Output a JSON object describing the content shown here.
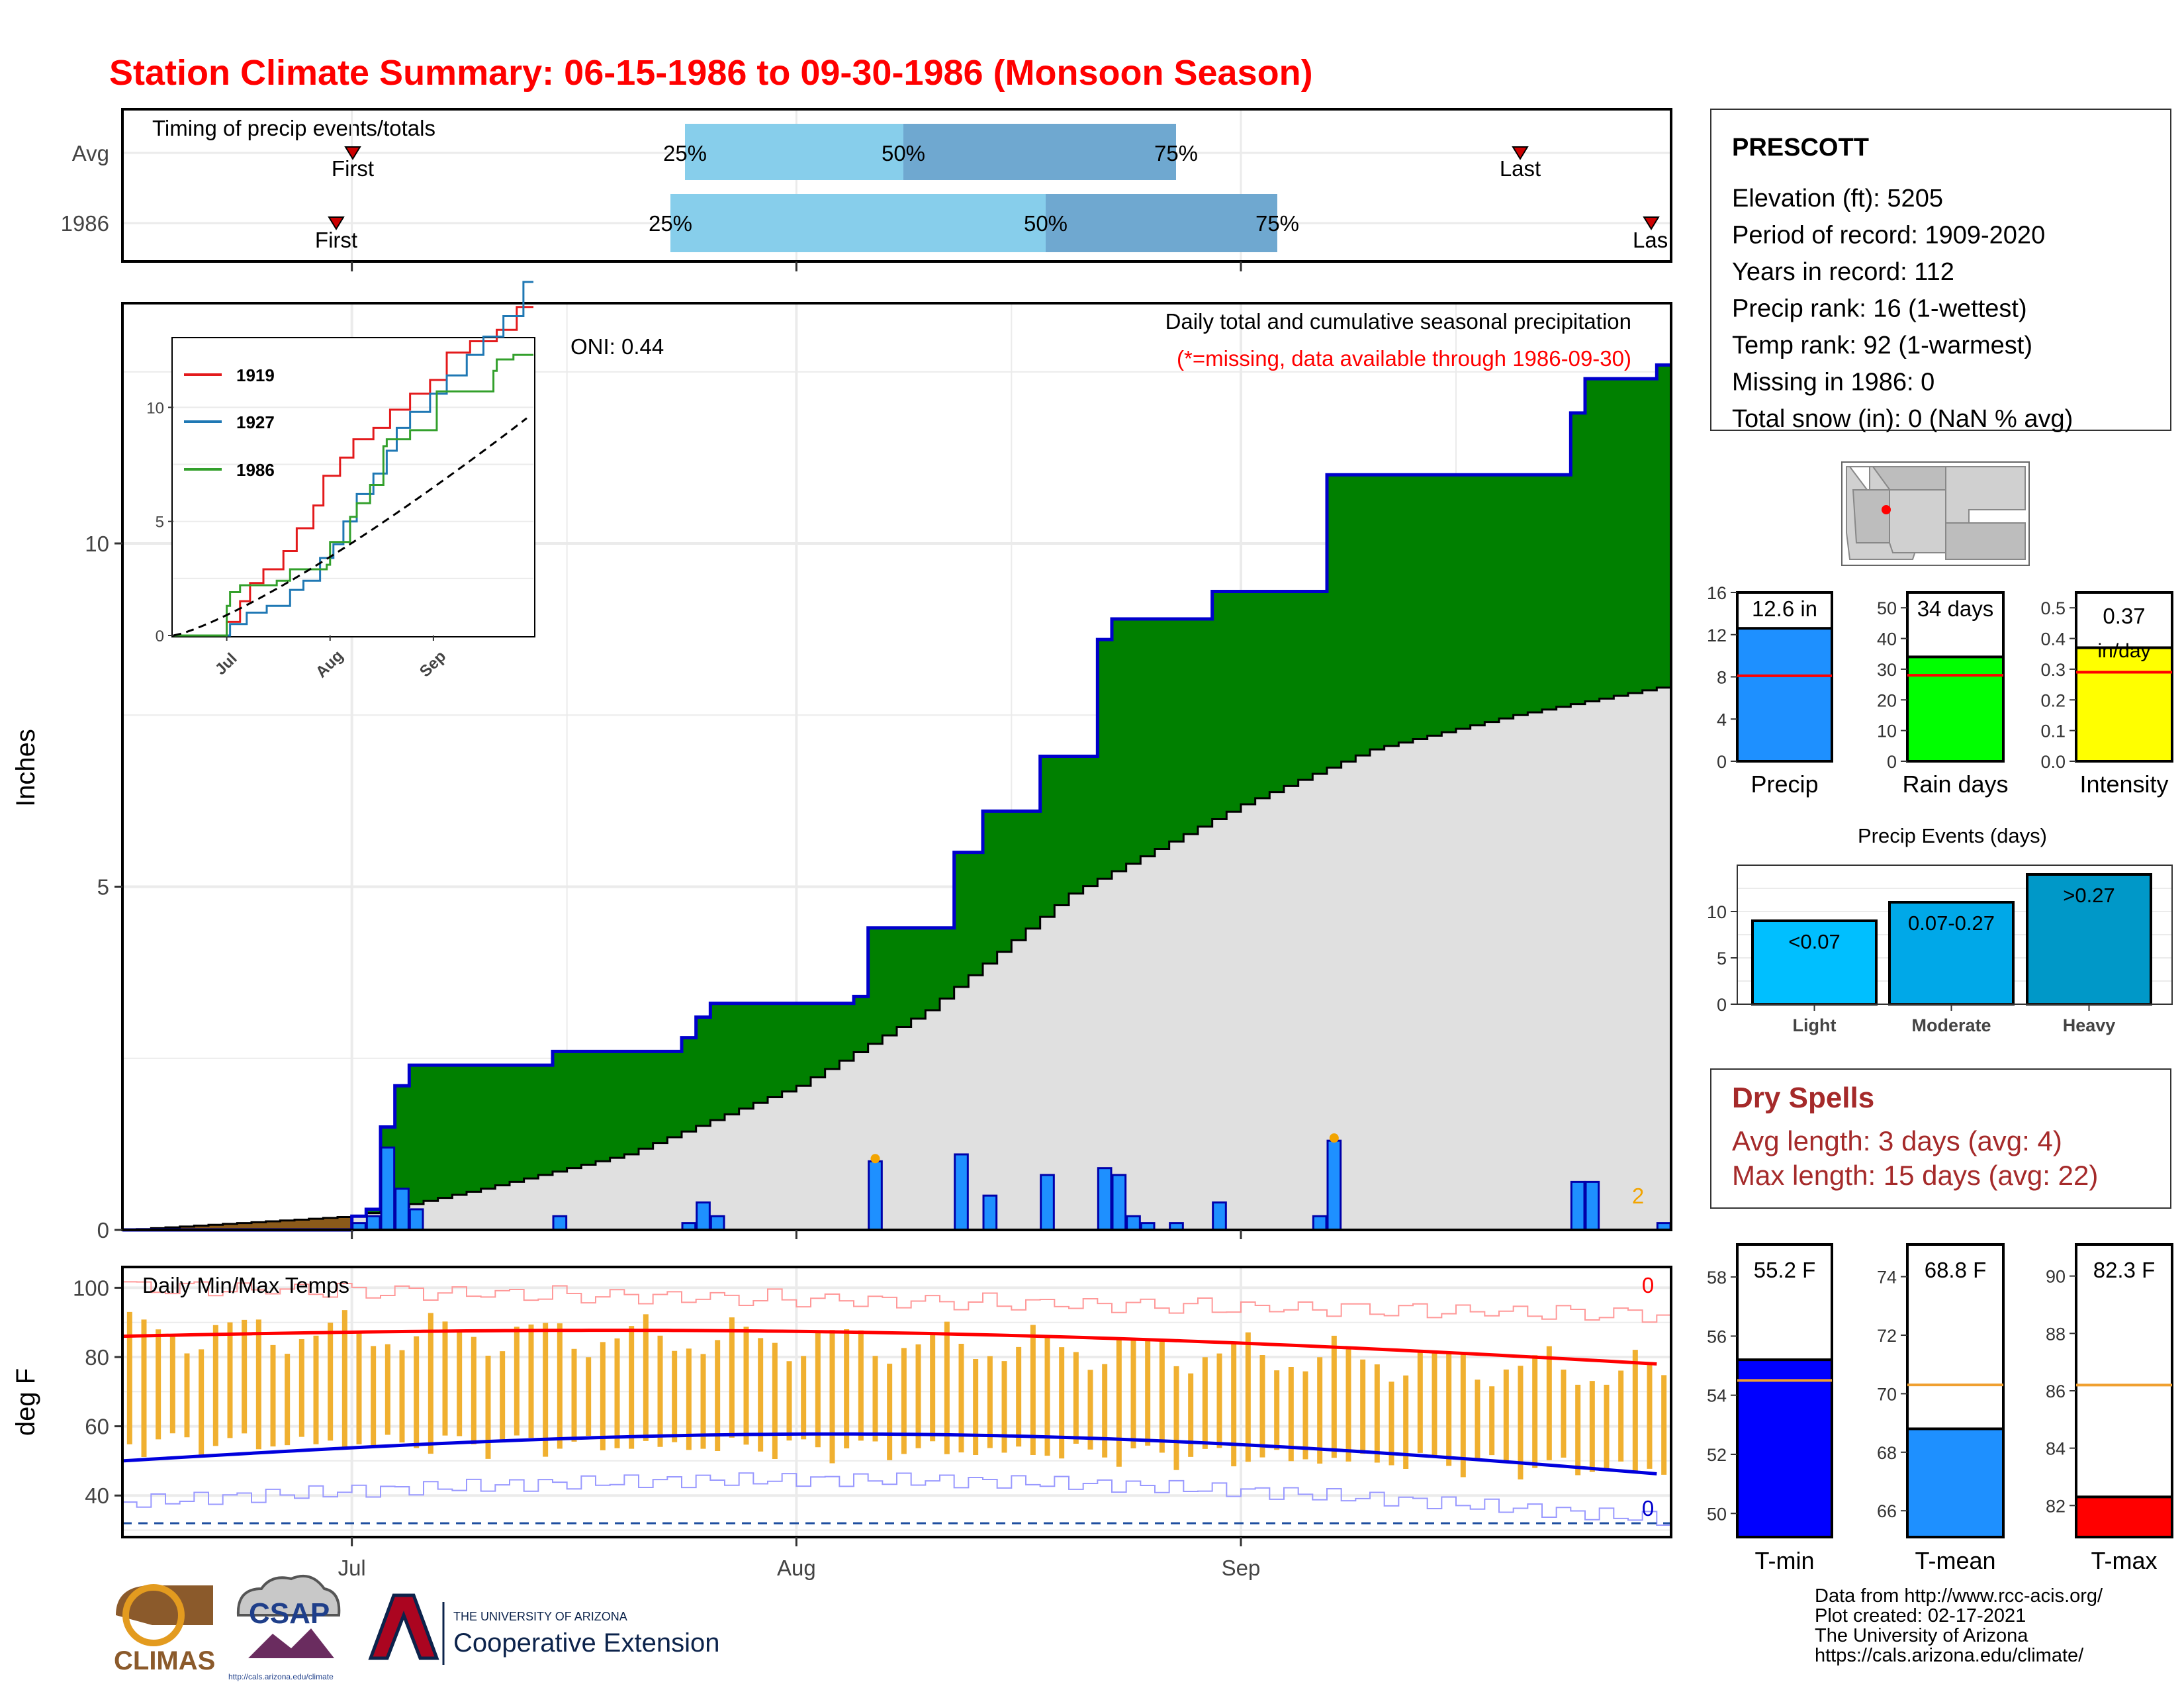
{
  "title": "Station Climate Summary: 06-15-1986 to 09-30-1986 (Monsoon Season)",
  "timing": {
    "label": "Timing of precip events/totals",
    "rows": [
      "Avg",
      "1986"
    ],
    "first_label": "First",
    "last_label": "Last",
    "last_label_clipped": "Las",
    "pct_labels": [
      "25%",
      "50%",
      "75%"
    ]
  },
  "station": {
    "name": "PRESCOTT",
    "lines": [
      "Elevation (ft): 5205",
      "Period of record: 1909-2020",
      "Years in record: 112",
      "Precip rank: 16 (1-wettest)",
      "Temp rank: 92 (1-warmest)",
      "Missing in 1986: 0",
      "Total snow (in): 0 (NaN % avg)"
    ]
  },
  "main": {
    "title": "Daily total and cumulative seasonal precipitation",
    "missing_note": "(*=missing, data available through 1986-09-30)",
    "oni_label": "ONI: 0.44",
    "ylabel": "Inches",
    "corner_count": "2",
    "month_labels": [
      "Jul",
      "Aug",
      "Sep"
    ]
  },
  "inset": {
    "legend": [
      "1919",
      "1927",
      "1986"
    ],
    "month_labels": [
      "Jul",
      "Aug",
      "Sep"
    ]
  },
  "temps": {
    "title": "Daily Min/Max Temps",
    "ylabel": "deg F",
    "max_count": "0",
    "min_count": "0"
  },
  "summary_bars": [
    {
      "name": "Precip",
      "label": "12.6 in",
      "ticks": [
        "0",
        "4",
        "8",
        "12",
        "16"
      ]
    },
    {
      "name": "Rain days",
      "label": "34 days",
      "ticks": [
        "0",
        "10",
        "20",
        "30",
        "40",
        "50"
      ]
    },
    {
      "name": "Intensity",
      "label": "0.37",
      "label2": "in/day",
      "ticks": [
        "0.0",
        "0.1",
        "0.2",
        "0.3",
        "0.4",
        "0.5"
      ]
    }
  ],
  "events": {
    "title": "Precip Events (days)",
    "categories": [
      "Light",
      "Moderate",
      "Heavy"
    ],
    "labels": [
      "<0.07",
      "0.07-0.27",
      ">0.27"
    ],
    "ticks": [
      "0",
      "5",
      "10"
    ]
  },
  "dry_spells": {
    "title": "Dry Spells",
    "avg_line": "Avg length: 3 days (avg: 4)",
    "max_line": "Max length: 15 days (avg: 22)"
  },
  "temp_bars": [
    {
      "name": "T-min",
      "label": "55.2 F",
      "ticks": [
        "50",
        "52",
        "54",
        "56",
        "58"
      ]
    },
    {
      "name": "T-mean",
      "label": "68.8 F",
      "ticks": [
        "66",
        "68",
        "70",
        "72",
        "74"
      ]
    },
    {
      "name": "T-max",
      "label": "82.3 F",
      "ticks": [
        "82",
        "84",
        "86",
        "88",
        "90"
      ]
    }
  ],
  "footer": {
    "lines": [
      "Data from http://www.rcc-acis.org/",
      "Plot created: 02-17-2021",
      "The University of Arizona",
      "https://cals.arizona.edu/climate/"
    ],
    "logos": {
      "climas": "CLIMAS",
      "csap": "CSAP",
      "csap_url": "http://cals.arizona.edu/climate",
      "ua_small": "THE UNIVERSITY OF ARIZONA",
      "ua_big": "Cooperative Extension"
    }
  },
  "chart_data": [
    {
      "type": "area",
      "title": "Daily total and cumulative seasonal precipitation",
      "ylabel": "Inches",
      "x_range": [
        "1986-06-15",
        "1986-09-30"
      ],
      "ylim": [
        0,
        13.5
      ],
      "yticks": [
        0,
        5,
        10
      ],
      "cumulative_1986": [
        [
          "06-15",
          0.0
        ],
        [
          "07-01",
          0.2
        ],
        [
          "07-02",
          0.3
        ],
        [
          "07-03",
          1.5
        ],
        [
          "07-04",
          2.1
        ],
        [
          "07-05",
          2.4
        ],
        [
          "07-14",
          2.4
        ],
        [
          "07-15",
          2.6
        ],
        [
          "07-23",
          2.6
        ],
        [
          "07-24",
          2.8
        ],
        [
          "07-25",
          3.1
        ],
        [
          "07-26",
          3.3
        ],
        [
          "08-05",
          3.4
        ],
        [
          "08-06",
          4.4
        ],
        [
          "08-11",
          4.4
        ],
        [
          "08-12",
          5.5
        ],
        [
          "08-14",
          6.1
        ],
        [
          "08-17",
          6.1
        ],
        [
          "08-18",
          6.9
        ],
        [
          "08-21",
          6.9
        ],
        [
          "08-22",
          8.6
        ],
        [
          "08-23",
          8.9
        ],
        [
          "08-29",
          8.9
        ],
        [
          "08-30",
          9.3
        ],
        [
          "09-06",
          9.3
        ],
        [
          "09-07",
          11.0
        ],
        [
          "09-23",
          11.0
        ],
        [
          "09-24",
          11.9
        ],
        [
          "09-25",
          12.4
        ],
        [
          "09-30",
          12.6
        ]
      ],
      "average_cumulative": [
        [
          "06-15",
          0.0
        ],
        [
          "07-01",
          0.2
        ],
        [
          "07-10",
          0.6
        ],
        [
          "07-20",
          1.1
        ],
        [
          "08-01",
          2.1
        ],
        [
          "08-10",
          3.2
        ],
        [
          "08-20",
          4.9
        ],
        [
          "09-01",
          6.2
        ],
        [
          "09-10",
          7.0
        ],
        [
          "09-20",
          7.5
        ],
        [
          "09-30",
          7.9
        ]
      ],
      "daily_precip_1986": [
        [
          "07-01",
          0.1
        ],
        [
          "07-02",
          0.2
        ],
        [
          "07-03",
          1.2
        ],
        [
          "07-04",
          0.6
        ],
        [
          "07-05",
          0.3
        ],
        [
          "07-15",
          0.2
        ],
        [
          "07-24",
          0.1
        ],
        [
          "07-25",
          0.4
        ],
        [
          "07-26",
          0.2
        ],
        [
          "08-06",
          1.0
        ],
        [
          "08-12",
          1.1
        ],
        [
          "08-14",
          0.5
        ],
        [
          "08-18",
          0.8
        ],
        [
          "08-22",
          0.9
        ],
        [
          "08-23",
          0.8
        ],
        [
          "08-24",
          0.2
        ],
        [
          "08-25",
          0.1
        ],
        [
          "08-27",
          0.1
        ],
        [
          "08-30",
          0.4
        ],
        [
          "09-06",
          0.2
        ],
        [
          "09-07",
          1.3
        ],
        [
          "09-24",
          0.7
        ],
        [
          "09-25",
          0.7
        ],
        [
          "09-30",
          0.1
        ]
      ]
    },
    {
      "type": "line",
      "title": "",
      "series_names": [
        "1919",
        "1927",
        "1986"
      ],
      "ylim": [
        0,
        13
      ],
      "yticks": [
        0,
        5,
        10
      ]
    },
    {
      "type": "bar",
      "title": "Daily Min/Max Temps",
      "ylabel": "deg F",
      "ylim": [
        28,
        106
      ],
      "yticks": [
        40,
        60,
        80,
        100
      ],
      "avg_max_range": [
        86,
        78
      ],
      "avg_min_range": [
        50,
        45
      ],
      "freeze_line": 32
    },
    {
      "type": "bar",
      "categories": [
        "Precip",
        "Rain days",
        "Intensity"
      ],
      "values": [
        12.6,
        34,
        0.37
      ],
      "averages": [
        8.1,
        28,
        0.29
      ]
    },
    {
      "type": "bar",
      "title": "Precip Events (days)",
      "categories": [
        "Light",
        "Moderate",
        "Heavy"
      ],
      "values": [
        9,
        11,
        14
      ],
      "ylim": [
        0,
        15
      ]
    },
    {
      "type": "bar",
      "categories": [
        "T-min",
        "T-mean",
        "T-max"
      ],
      "values": [
        55.2,
        68.8,
        82.3
      ],
      "averages": [
        54.5,
        70.3,
        86.2
      ]
    }
  ]
}
